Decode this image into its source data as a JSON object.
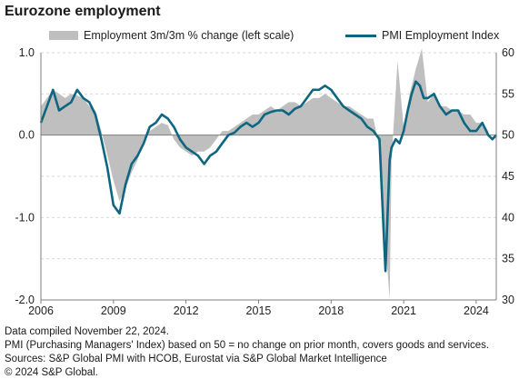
{
  "title": "Eurozone employment",
  "footer": {
    "line1": "Data compiled November 22, 2024.",
    "line2": "PMI (Purchasing Managers' Index) based on 50 = no change on prior month, covers goods and services.",
    "line3": "Sources: S&P Global PMI with HCOB, Eurostat via S&P Global Market Intelligence",
    "line4": "© 2024 S&P Global."
  },
  "colors": {
    "employment": "#bfbfbf",
    "pmi": "#0e6680",
    "grid": "#d9d9d9",
    "axis": "#7f7f7f"
  },
  "chart_data": {
    "type": "area+line",
    "title": "Eurozone employment",
    "x_ticks": [
      "2006",
      "2009",
      "2012",
      "2015",
      "2018",
      "2021",
      "2024"
    ],
    "xlim": [
      2006.0,
      2024.83
    ],
    "y_left": {
      "lim": [
        -2.0,
        1.0
      ],
      "ticks": [
        "1.0",
        "0.0",
        "-1.0",
        "-2.0"
      ]
    },
    "y_right": {
      "lim": [
        30,
        60
      ],
      "ticks": [
        "60",
        "55",
        "50",
        "45",
        "40",
        "35",
        "30"
      ]
    },
    "legend_position": "top",
    "grid": true,
    "series": [
      {
        "name": "Employment 3m/3m % change (left scale)",
        "type": "area",
        "axis": "left",
        "x": [
          2006.0,
          2006.25,
          2006.5,
          2006.75,
          2007.0,
          2007.25,
          2007.5,
          2007.75,
          2008.0,
          2008.25,
          2008.5,
          2008.75,
          2009.0,
          2009.25,
          2009.5,
          2009.75,
          2010.0,
          2010.25,
          2010.5,
          2010.75,
          2011.0,
          2011.25,
          2011.5,
          2011.75,
          2012.0,
          2012.25,
          2012.5,
          2012.75,
          2013.0,
          2013.25,
          2013.5,
          2013.75,
          2014.0,
          2014.25,
          2014.5,
          2014.75,
          2015.0,
          2015.25,
          2015.5,
          2015.75,
          2016.0,
          2016.25,
          2016.5,
          2016.75,
          2017.0,
          2017.25,
          2017.5,
          2017.75,
          2018.0,
          2018.25,
          2018.5,
          2018.75,
          2019.0,
          2019.25,
          2019.5,
          2019.75,
          2020.0,
          2020.25,
          2020.42,
          2020.5,
          2020.75,
          2021.0,
          2021.25,
          2021.5,
          2021.75,
          2022.0,
          2022.25,
          2022.5,
          2022.75,
          2023.0,
          2023.25,
          2023.5,
          2023.75,
          2024.0,
          2024.25,
          2024.5
        ],
        "values": [
          0.35,
          0.45,
          0.55,
          0.5,
          0.45,
          0.5,
          0.48,
          0.45,
          0.35,
          0.3,
          0.05,
          -0.25,
          -0.55,
          -0.8,
          -0.65,
          -0.45,
          -0.3,
          -0.05,
          0.05,
          0.1,
          0.15,
          0.12,
          -0.05,
          -0.15,
          -0.2,
          -0.25,
          -0.2,
          -0.2,
          -0.15,
          -0.05,
          0.05,
          0.05,
          0.1,
          0.15,
          0.2,
          0.25,
          0.25,
          0.3,
          0.35,
          0.3,
          0.35,
          0.4,
          0.4,
          0.35,
          0.4,
          0.45,
          0.45,
          0.5,
          0.45,
          0.4,
          0.35,
          0.35,
          0.3,
          0.25,
          0.2,
          0.2,
          -0.15,
          -1.3,
          -2.0,
          -0.3,
          0.9,
          0.1,
          0.5,
          0.8,
          1.05,
          0.4,
          0.5,
          0.35,
          0.35,
          0.3,
          0.3,
          0.25,
          0.25,
          0.15,
          0.15,
          0.05
        ]
      },
      {
        "name": "PMI Employment Index",
        "type": "line",
        "axis": "right",
        "x": [
          2006.0,
          2006.25,
          2006.5,
          2006.75,
          2007.0,
          2007.25,
          2007.5,
          2007.75,
          2008.0,
          2008.25,
          2008.5,
          2008.75,
          2009.0,
          2009.25,
          2009.5,
          2009.75,
          2010.0,
          2010.25,
          2010.5,
          2010.75,
          2011.0,
          2011.25,
          2011.5,
          2011.75,
          2012.0,
          2012.25,
          2012.5,
          2012.75,
          2013.0,
          2013.25,
          2013.5,
          2013.75,
          2014.0,
          2014.25,
          2014.5,
          2014.75,
          2015.0,
          2015.25,
          2015.5,
          2015.75,
          2016.0,
          2016.25,
          2016.5,
          2016.75,
          2017.0,
          2017.25,
          2017.5,
          2017.75,
          2018.0,
          2018.25,
          2018.5,
          2018.75,
          2019.0,
          2019.25,
          2019.5,
          2019.75,
          2020.0,
          2020.17,
          2020.25,
          2020.33,
          2020.42,
          2020.5,
          2020.67,
          2020.83,
          2021.0,
          2021.17,
          2021.33,
          2021.5,
          2021.67,
          2021.83,
          2022.0,
          2022.25,
          2022.5,
          2022.75,
          2023.0,
          2023.25,
          2023.5,
          2023.75,
          2024.0,
          2024.25,
          2024.5,
          2024.67,
          2024.83
        ],
        "values": [
          51.5,
          53.5,
          55.5,
          53.0,
          53.5,
          54.0,
          55.5,
          54.5,
          54.0,
          52.5,
          49.5,
          46.0,
          41.5,
          40.5,
          44.0,
          46.5,
          47.5,
          49.0,
          51.0,
          51.5,
          52.5,
          52.0,
          51.0,
          49.5,
          48.5,
          48.0,
          47.5,
          46.5,
          47.5,
          48.0,
          49.0,
          50.0,
          50.3,
          51.0,
          51.5,
          51.0,
          51.5,
          52.5,
          52.8,
          53.0,
          53.0,
          52.5,
          53.2,
          53.5,
          54.5,
          55.5,
          55.5,
          56.0,
          55.5,
          54.5,
          53.5,
          53.0,
          52.5,
          52.0,
          51.0,
          50.5,
          49.5,
          38.5,
          33.5,
          40.0,
          47.0,
          48.5,
          49.5,
          49.0,
          50.5,
          53.0,
          55.0,
          56.5,
          56.0,
          54.5,
          54.5,
          55.0,
          53.5,
          52.5,
          53.0,
          53.0,
          51.5,
          50.5,
          50.5,
          51.5,
          50.0,
          49.5,
          50.0
        ]
      }
    ]
  }
}
